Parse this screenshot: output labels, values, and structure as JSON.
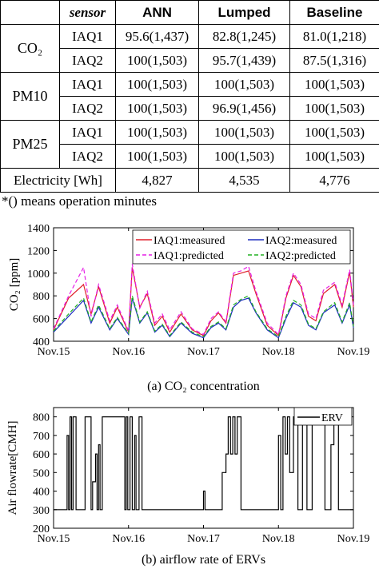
{
  "table": {
    "header": [
      "",
      "sensor",
      "ANN",
      "Lumped",
      "Baseline"
    ],
    "groups": [
      {
        "label": "CO₂",
        "rows": [
          {
            "sensor": "IAQ1",
            "ann": "95.6(1,437)",
            "lumped": "82.8(1,245)",
            "baseline": "81.0(1,218)"
          },
          {
            "sensor": "IAQ2",
            "ann": "100(1,503)",
            "lumped": "95.7(1,439)",
            "baseline": "87.5(1,316)"
          }
        ]
      },
      {
        "label": "PM10",
        "rows": [
          {
            "sensor": "IAQ1",
            "ann": "100(1,503)",
            "lumped": "100(1,503)",
            "baseline": "100(1,503)"
          },
          {
            "sensor": "IAQ2",
            "ann": "100(1,503)",
            "lumped": "96.9(1,456)",
            "baseline": "100(1,503)"
          }
        ]
      },
      {
        "label": "PM25",
        "rows": [
          {
            "sensor": "IAQ1",
            "ann": "100(1,503)",
            "lumped": "100(1,503)",
            "baseline": "100(1,503)"
          },
          {
            "sensor": "IAQ2",
            "ann": "100(1,503)",
            "lumped": "100(1,503)",
            "baseline": "100(1,503)"
          }
        ]
      }
    ],
    "electricity": {
      "label": "Electricity [Wh]",
      "ann": "4,827",
      "lumped": "4,535",
      "baseline": "4,776"
    },
    "note": "*() means operation minutes"
  },
  "chart_data": [
    {
      "type": "line",
      "caption": "(a)   CO₂ concentration",
      "ylabel": "CO₂ [ppm]",
      "ylim": [
        400,
        1400
      ],
      "yticks": [
        400,
        600,
        800,
        1000,
        1200,
        1400
      ],
      "xlim": [
        0,
        4
      ],
      "xtick_labels": [
        "Nov.15",
        "Nov.16",
        "Nov.17",
        "Nov.18",
        "Nov.19"
      ],
      "legend": "top-right",
      "x": [
        0.0,
        0.2,
        0.4,
        0.5,
        0.6,
        0.75,
        0.85,
        1.0,
        1.05,
        1.15,
        1.25,
        1.35,
        1.45,
        1.55,
        1.7,
        1.85,
        2.0,
        2.1,
        2.2,
        2.3,
        2.4,
        2.5,
        2.6,
        2.7,
        2.85,
        3.0,
        3.1,
        3.2,
        3.3,
        3.4,
        3.5,
        3.6,
        3.75,
        3.85,
        3.95,
        4.0
      ],
      "series": [
        {
          "name": "IAQ1:measured",
          "color": "#e0202c",
          "dash": "solid",
          "values": [
            500,
            780,
            900,
            640,
            880,
            560,
            700,
            480,
            1050,
            700,
            820,
            540,
            620,
            480,
            640,
            500,
            450,
            580,
            650,
            560,
            980,
            1000,
            1020,
            820,
            540,
            450,
            780,
            980,
            880,
            620,
            580,
            820,
            900,
            700,
            1010,
            700
          ]
        },
        {
          "name": "IAQ2:measured",
          "color": "#1f2fbf",
          "dash": "solid",
          "values": [
            480,
            620,
            760,
            560,
            700,
            500,
            600,
            460,
            780,
            560,
            650,
            480,
            540,
            440,
            560,
            470,
            430,
            520,
            560,
            500,
            700,
            760,
            780,
            650,
            500,
            430,
            600,
            740,
            700,
            540,
            500,
            650,
            720,
            560,
            720,
            520
          ]
        },
        {
          "name": "IAQ1:predicted",
          "color": "#e61fe6",
          "dash": "dashed",
          "values": [
            510,
            800,
            1050,
            620,
            900,
            580,
            720,
            490,
            1080,
            690,
            840,
            560,
            640,
            500,
            660,
            510,
            460,
            600,
            660,
            570,
            1000,
            1020,
            1060,
            840,
            560,
            460,
            800,
            1000,
            900,
            640,
            600,
            850,
            920,
            720,
            1030,
            720
          ]
        },
        {
          "name": "IAQ2:predicted",
          "color": "#22b022",
          "dash": "dashed",
          "values": [
            490,
            640,
            780,
            570,
            720,
            510,
            610,
            470,
            800,
            570,
            660,
            490,
            550,
            450,
            570,
            480,
            440,
            530,
            570,
            510,
            720,
            770,
            800,
            660,
            510,
            440,
            620,
            760,
            720,
            550,
            510,
            660,
            740,
            570,
            740,
            530
          ]
        }
      ]
    },
    {
      "type": "line",
      "caption": "(b) airflow rate of ERVs",
      "ylabel": "Air flowrate[CMH]",
      "ylim": [
        200,
        850
      ],
      "yticks": [
        200,
        300,
        400,
        500,
        600,
        700,
        800
      ],
      "xlim": [
        0,
        4
      ],
      "xtick_labels": [
        "Nov.15",
        "Nov.16",
        "Nov.17",
        "Nov.18",
        "Nov.19"
      ],
      "legend": "top-right",
      "series": [
        {
          "name": "ERV",
          "color": "#000000",
          "x": [
            0,
            0.18,
            0.18,
            0.2,
            0.2,
            0.22,
            0.22,
            0.24,
            0.24,
            0.26,
            0.26,
            0.3,
            0.3,
            0.42,
            0.42,
            0.5,
            0.5,
            0.52,
            0.52,
            0.56,
            0.56,
            0.58,
            0.58,
            0.6,
            0.6,
            0.62,
            0.62,
            0.65,
            0.65,
            0.95,
            0.95,
            0.97,
            0.97,
            0.99,
            0.99,
            1.02,
            1.02,
            1.05,
            1.05,
            1.08,
            1.08,
            1.1,
            1.1,
            1.14,
            1.14,
            1.18,
            1.18,
            1.4,
            1.4,
            1.55,
            1.55,
            1.95,
            1.95,
            2.0,
            2.0,
            2.02,
            2.02,
            2.05,
            2.05,
            2.25,
            2.25,
            2.3,
            2.3,
            2.33,
            2.33,
            2.36,
            2.36,
            2.39,
            2.39,
            2.42,
            2.42,
            2.45,
            2.45,
            2.5,
            2.5,
            2.55,
            2.55,
            3.0,
            3.0,
            3.03,
            3.03,
            3.06,
            3.06,
            3.09,
            3.09,
            3.12,
            3.12,
            3.15,
            3.15,
            3.2,
            3.2,
            3.26,
            3.26,
            3.32,
            3.32,
            3.38,
            3.38,
            3.45,
            3.45,
            3.62,
            3.62,
            3.7,
            3.7,
            3.74,
            3.74,
            3.8,
            3.8,
            4.0
          ],
          "values": [
            300,
            300,
            700,
            700,
            300,
            300,
            800,
            800,
            300,
            300,
            800,
            800,
            300,
            300,
            800,
            800,
            300,
            300,
            450,
            450,
            600,
            600,
            300,
            300,
            650,
            650,
            300,
            300,
            800,
            800,
            300,
            300,
            800,
            800,
            300,
            300,
            800,
            800,
            300,
            300,
            700,
            700,
            300,
            300,
            800,
            800,
            300,
            300,
            300,
            300,
            300,
            300,
            300,
            300,
            400,
            400,
            300,
            300,
            300,
            300,
            500,
            500,
            600,
            600,
            800,
            800,
            600,
            600,
            800,
            800,
            600,
            600,
            800,
            800,
            300,
            300,
            300,
            300,
            700,
            700,
            300,
            300,
            800,
            800,
            600,
            600,
            800,
            800,
            500,
            500,
            800,
            800,
            300,
            300,
            800,
            800,
            300,
            300,
            800,
            800,
            300,
            300,
            650,
            650,
            800,
            800,
            300,
            300
          ]
        }
      ]
    }
  ]
}
